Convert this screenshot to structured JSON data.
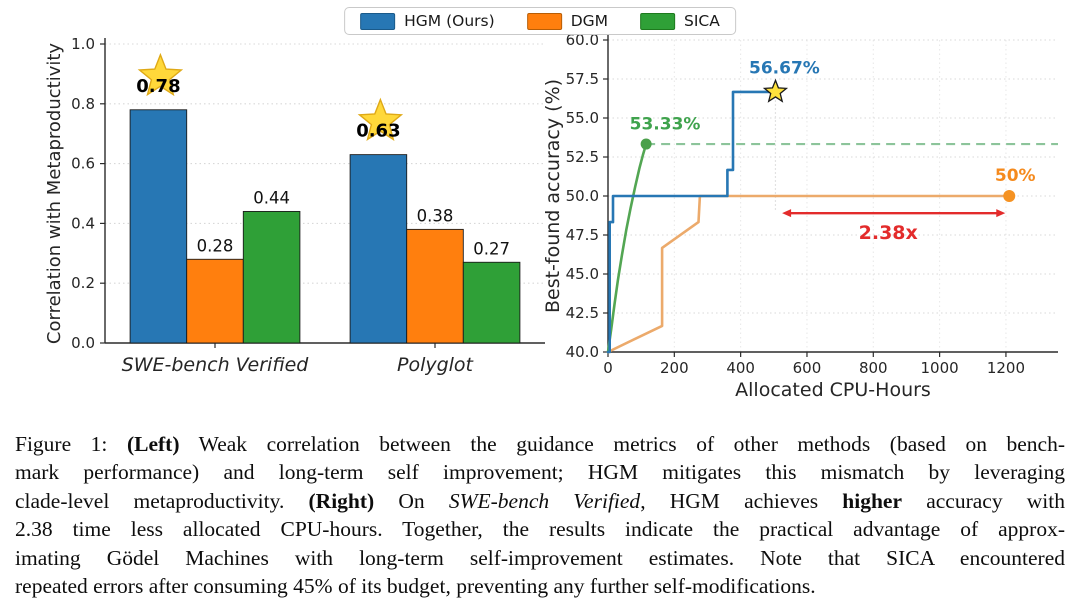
{
  "figure": {
    "legend": {
      "items": [
        {
          "label": "HGM (Ours)",
          "color": "#2777b4",
          "edge": "#1a5a8a"
        },
        {
          "label": "DGM",
          "color": "#ff7f0e",
          "edge": "#b85e06"
        },
        {
          "label": "SICA",
          "color": "#2fa037",
          "edge": "#1e7a1e"
        }
      ]
    },
    "caption": {
      "lines": [
        [
          {
            "t": "Figure 1: "
          },
          {
            "t": "(Left)",
            "b": true
          },
          {
            "t": " Weak correlation between the guidance metrics of other methods (based on bench-"
          }
        ],
        [
          {
            "t": "mark performance) and long-term self improvement; HGM mitigates this mismatch by leveraging"
          }
        ],
        [
          {
            "t": "clade-level metaproductivity. "
          },
          {
            "t": "(Right)",
            "b": true
          },
          {
            "t": " On "
          },
          {
            "t": "SWE-bench Verified",
            "i": true
          },
          {
            "t": ", HGM achieves "
          },
          {
            "t": "higher",
            "b": true
          },
          {
            "t": " accuracy with"
          }
        ],
        [
          {
            "t": "2.38 time less allocated CPU-hours. Together, the results indicate the practical advantage of approx-"
          }
        ],
        [
          {
            "t": "imating Gödel Machines with long-term self-improvement estimates. Note that SICA encountered"
          }
        ],
        [
          {
            "t": "repeated errors after consuming 45% of its budget, preventing any further self-modifications."
          }
        ]
      ]
    }
  },
  "chart_data": [
    {
      "type": "bar",
      "title": "",
      "xlabel": "",
      "ylabel": "Correlation with Metaproductivity",
      "categories": [
        "SWE-bench Verified",
        "Polyglot"
      ],
      "series": [
        {
          "name": "HGM (Ours)",
          "color": "#2777b4",
          "values": [
            0.78,
            0.63
          ],
          "value_labels": [
            "0.78",
            "0.63"
          ],
          "starred": [
            true,
            true
          ]
        },
        {
          "name": "DGM",
          "color": "#ff7f0e",
          "values": [
            0.28,
            0.38
          ],
          "value_labels": [
            "0.28",
            "0.38"
          ],
          "starred": [
            false,
            false
          ]
        },
        {
          "name": "SICA",
          "color": "#2fa037",
          "values": [
            0.44,
            0.27
          ],
          "value_labels": [
            "0.44",
            "0.27"
          ],
          "starred": [
            false,
            false
          ]
        }
      ],
      "ylim": [
        0.0,
        1.0
      ],
      "yticks": [
        "0.0",
        "0.2",
        "0.4",
        "0.6",
        "0.8",
        "1.0"
      ],
      "grid": "horizontal-dotted",
      "legend_position": "top-center-shared",
      "star_color": "#ffd83a",
      "star_edge": "#dfa916"
    },
    {
      "type": "line",
      "title": "",
      "xlabel": "Allocated CPU-Hours",
      "ylabel": "Best-found accuracy (%)",
      "xlim": [
        0,
        1357
      ],
      "ylim": [
        40,
        60
      ],
      "xticks": [
        0,
        200,
        400,
        600,
        800,
        1000,
        1200
      ],
      "yticks": [
        "40.0",
        "42.5",
        "45.0",
        "47.5",
        "50.0",
        "52.5",
        "55.0",
        "57.5",
        "60.0"
      ],
      "grid": "both-dotted",
      "series": [
        {
          "name": "DGM",
          "color": "#ecaa6b",
          "style": "step",
          "points": [
            [
              0,
              40
            ],
            [
              163,
              41.67
            ],
            [
              163,
              46.67
            ],
            [
              273,
              48.33
            ],
            [
              277,
              50
            ],
            [
              1210,
              50
            ]
          ]
        },
        {
          "name": "SICA",
          "color": "#53a653",
          "style": "curve",
          "points": [
            [
              0,
              40
            ],
            [
              10,
              41.5
            ],
            [
              20,
              43.1
            ],
            [
              30,
              44.6
            ],
            [
              42,
              46.2
            ],
            [
              55,
              47.8
            ],
            [
              68,
              49.2
            ],
            [
              82,
              50.6
            ],
            [
              95,
              51.8
            ],
            [
              105,
              52.6
            ],
            [
              115,
              53.33
            ]
          ]
        },
        {
          "name": "HGM (Ours)",
          "color": "#2777b4",
          "style": "step",
          "points": [
            [
              0,
              40
            ],
            [
              5,
              40
            ],
            [
              5,
              48.33
            ],
            [
              15,
              48.33
            ],
            [
              15,
              50
            ],
            [
              360,
              50
            ],
            [
              360,
              51.67
            ],
            [
              377,
              51.67
            ],
            [
              377,
              56.67
            ],
            [
              505,
              56.67
            ]
          ]
        }
      ],
      "annotations": {
        "hgm_star": {
          "x": 505,
          "y": 56.67,
          "label": "56.67%",
          "label_x": 532,
          "label_y": 57.85,
          "label_color": "#2777b4",
          "star_fill": "#ffe23c",
          "star_edge": "#1a1a1a",
          "guide_drop_to": 49.05,
          "guide_color": "#e2e2e2"
        },
        "sica_end": {
          "x": 115,
          "y": 53.33,
          "label": "53.33%",
          "label_x": 172,
          "label_y": 54.25,
          "label_color": "#3fa34d",
          "dot_color": "#4aa04a",
          "dash_to": 1357,
          "dash_color": "#8cc49a"
        },
        "dgm_end": {
          "x": 1210,
          "y": 50,
          "label": "50%",
          "label_x": 1228,
          "label_y": 50.95,
          "label_color": "#f58a1d",
          "dot_color": "#f59222"
        },
        "speedup_arrow": {
          "x1": 525,
          "x2": 1198,
          "y": 48.9,
          "color": "#e32b2b",
          "label": "2.38x",
          "label_x": 845,
          "label_y": 47.25
        }
      }
    }
  ]
}
